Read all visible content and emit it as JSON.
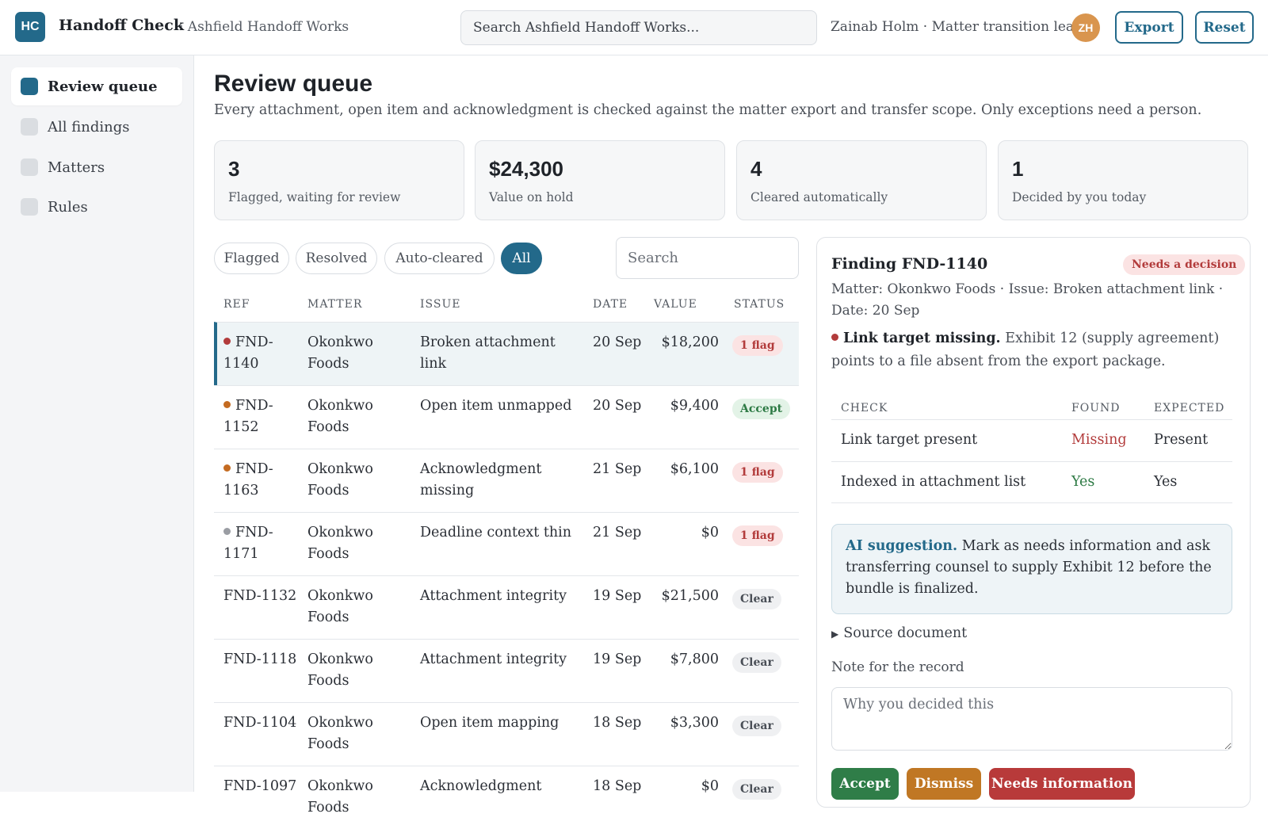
{
  "header": {
    "logo": "HC",
    "app_title": "Handoff Check",
    "workspace": "· Ashfield Handoff Works",
    "search_placeholder": "Search Ashfield Handoff Works...",
    "user": "Zainab Holm · Matter transition lead",
    "avatar": "ZH",
    "export_label": "Export",
    "reset_label": "Reset"
  },
  "sidebar": {
    "items": [
      {
        "label": "Review queue",
        "active": true
      },
      {
        "label": "All findings"
      },
      {
        "label": "Matters"
      },
      {
        "label": "Rules"
      }
    ]
  },
  "main": {
    "title": "Review queue",
    "subtitle": "Every attachment, open item and acknowledgment is checked against the matter export and transfer scope. Only exceptions need a person."
  },
  "stats": [
    {
      "value": "3",
      "label": "Flagged, waiting for review"
    },
    {
      "value": "$24,300",
      "label": "Value on hold"
    },
    {
      "value": "4",
      "label": "Cleared automatically"
    },
    {
      "value": "1",
      "label": "Decided by you today"
    }
  ],
  "filters": {
    "chips": [
      "Flagged",
      "Resolved",
      "Auto-cleared",
      "All"
    ],
    "active": "All",
    "search_placeholder": "Search"
  },
  "table": {
    "headers": {
      "ref": "REF",
      "matter": "MATTER",
      "issue": "ISSUE",
      "date": "DATE",
      "value": "VALUE",
      "status": "STATUS"
    },
    "rows": [
      {
        "ref": "FND-1140",
        "matter": "Okonkwo Foods",
        "issue": "Broken attachment link",
        "date": "20 Sep",
        "value": "$18,200",
        "status": "1 flag",
        "kind": "flag",
        "dot": "#b23b3b"
      },
      {
        "ref": "FND-1152",
        "matter": "Okonkwo Foods",
        "issue": "Open item unmapped",
        "date": "20 Sep",
        "value": "$9,400",
        "status": "Accept",
        "kind": "accept",
        "dot": "#c46b21"
      },
      {
        "ref": "FND-1163",
        "matter": "Okonkwo Foods",
        "issue": "Acknowledgment missing",
        "date": "21 Sep",
        "value": "$6,100",
        "status": "1 flag",
        "kind": "flag",
        "dot": "#c46b21"
      },
      {
        "ref": "FND-1171",
        "matter": "Okonkwo Foods",
        "issue": "Deadline context thin",
        "date": "21 Sep",
        "value": "$0",
        "status": "1 flag",
        "kind": "flag",
        "dot": "#9a9da3"
      },
      {
        "ref": "FND-1132",
        "matter": "Okonkwo Foods",
        "issue": "Attachment integrity",
        "date": "19 Sep",
        "value": "$21,500",
        "status": "Clear",
        "kind": "clear",
        "dot": ""
      },
      {
        "ref": "FND-1118",
        "matter": "Okonkwo Foods",
        "issue": "Attachment integrity",
        "date": "19 Sep",
        "value": "$7,800",
        "status": "Clear",
        "kind": "clear",
        "dot": ""
      },
      {
        "ref": "FND-1104",
        "matter": "Okonkwo Foods",
        "issue": "Open item mapping",
        "date": "18 Sep",
        "value": "$3,300",
        "status": "Clear",
        "kind": "clear",
        "dot": ""
      },
      {
        "ref": "FND-1097",
        "matter": "Okonkwo Foods",
        "issue": "Acknowledgment",
        "date": "18 Sep",
        "value": "$0",
        "status": "Clear",
        "kind": "clear",
        "dot": ""
      }
    ]
  },
  "detail": {
    "title": "Finding FND-1140",
    "status": "Needs a decision",
    "meta": "Matter: Okonkwo Foods · Issue: Broken attachment link · Date: 20 Sep",
    "issue_title": "Link target missing.",
    "issue_text": "Exhibit 12 (supply agreement) points to a file absent from the export package.",
    "issue_dot": "#b23b3b",
    "check_headers": {
      "check": "CHECK",
      "found": "FOUND",
      "expected": "EXPECTED"
    },
    "checks": [
      {
        "check": "Link target present",
        "found": "Missing",
        "expected": "Present",
        "found_color": "#b23b3b"
      },
      {
        "check": "Indexed in attachment list",
        "found": "Yes",
        "expected": "Yes",
        "found_color": "#2d7a44"
      }
    ],
    "ai_label": "AI suggestion.",
    "ai_text": "Mark as needs information and ask transferring counsel to supply Exhibit 12 before the bundle is finalized.",
    "source_label": "Source document",
    "note_label": "Note for the record",
    "note_placeholder": "Why you decided this",
    "actions": {
      "accept": "Accept",
      "dismiss": "Dismiss",
      "needs_info": "Needs information"
    },
    "colors": {
      "accept": "#2f7d48",
      "dismiss": "#c07724",
      "needs_info": "#b83a3a"
    }
  }
}
